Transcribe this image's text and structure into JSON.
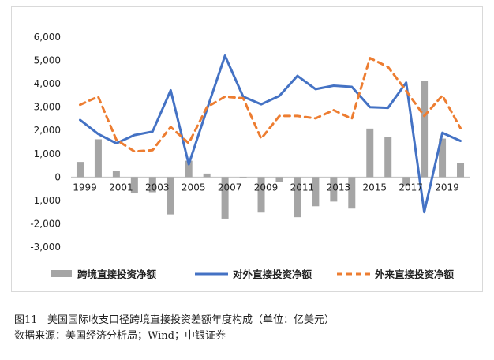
{
  "caption": {
    "figure": "图11",
    "title": "美国国际收支口径跨境直接投资差额年度构成（单位：亿美元）",
    "source": "数据来源：美国经济分析局；Wind；中银证券"
  },
  "chart_data": {
    "type": "bar+line",
    "x": [
      1999,
      2000,
      2001,
      2002,
      2003,
      2004,
      2005,
      2006,
      2007,
      2008,
      2009,
      2010,
      2011,
      2012,
      2013,
      2014,
      2015,
      2016,
      2017,
      2018,
      2019,
      2020
    ],
    "x_tick_labels": [
      "1999",
      "2001",
      "2003",
      "2005",
      "2007",
      "2009",
      "2011",
      "2013",
      "2015",
      "2017",
      "2019"
    ],
    "y_tick_labels": [
      "6,000",
      "5,000",
      "4,000",
      "3,000",
      "2,000",
      "1,000",
      "0",
      "-1,000",
      "-2,000",
      "-3,000"
    ],
    "ylim": [
      -3000,
      6000
    ],
    "y_step": 1000,
    "grid": false,
    "legend_position": "bottom",
    "series": [
      {
        "name": "跨境直接投资净额",
        "kind": "bar",
        "color": "#a5a5a5",
        "values": [
          650,
          1620,
          250,
          -700,
          -650,
          -1600,
          700,
          150,
          -1780,
          -50,
          -1520,
          -200,
          -1720,
          -1250,
          -1050,
          -1350,
          2080,
          1730,
          -350,
          4120,
          1650,
          600
        ]
      },
      {
        "name": "对外直接投资净额",
        "kind": "line",
        "style": "solid",
        "color": "#4472c4",
        "values": [
          2450,
          1850,
          1450,
          1800,
          1950,
          3720,
          550,
          2900,
          5200,
          3450,
          3120,
          3480,
          4340,
          3770,
          3920,
          3870,
          3000,
          2970,
          4050,
          -1500,
          1900,
          1550
        ]
      },
      {
        "name": "外来直接投资净额",
        "kind": "line",
        "style": "dashed",
        "color": "#ed7d31",
        "values": [
          3100,
          3450,
          1600,
          1100,
          1150,
          2150,
          1450,
          3000,
          3450,
          3380,
          1650,
          2620,
          2620,
          2520,
          2870,
          2500,
          5100,
          4720,
          3700,
          2620,
          3500,
          2100
        ]
      }
    ]
  }
}
